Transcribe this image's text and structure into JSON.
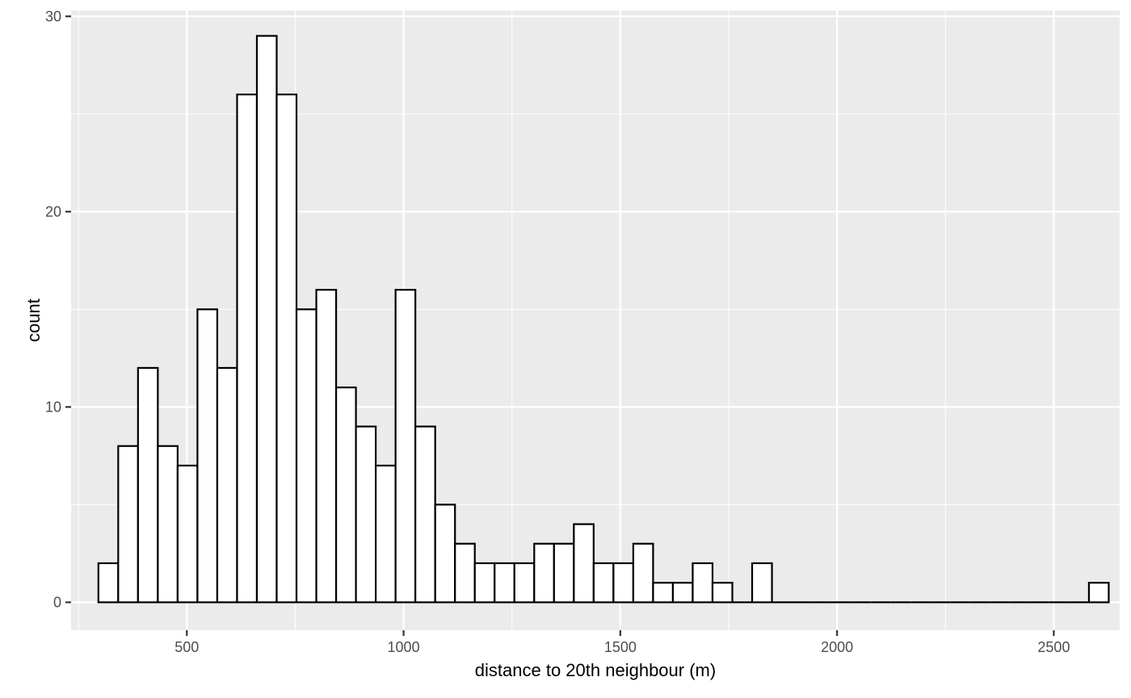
{
  "chart_data": {
    "type": "bar",
    "subtype": "histogram",
    "xlabel": "distance to 20th neighbour (m)",
    "ylabel": "count",
    "xlim": [
      233,
      2652
    ],
    "ylim": [
      -1.43,
      30.3
    ],
    "x_ticks": [
      500,
      1000,
      1500,
      2000,
      2500
    ],
    "y_ticks": [
      0,
      10,
      20,
      30
    ],
    "grid": true,
    "bin_start": 296,
    "bin_width": 45.7,
    "counts": [
      2,
      8,
      12,
      8,
      7,
      15,
      12,
      26,
      29,
      26,
      15,
      16,
      11,
      9,
      7,
      16,
      9,
      5,
      3,
      2,
      2,
      2,
      3,
      3,
      4,
      2,
      2,
      3,
      1,
      1,
      2,
      1,
      0,
      2,
      0,
      0,
      0,
      0,
      0,
      0,
      0,
      0,
      0,
      0,
      0,
      0,
      0,
      0,
      0,
      0,
      1
    ],
    "colors": {
      "panel": "#EBEBEB",
      "grid": "#FFFFFF",
      "bar_fill": "#FFFFFF",
      "bar_outline": "#000000",
      "tick_text": "#4D4D4D",
      "tick_mark": "#333333"
    }
  }
}
